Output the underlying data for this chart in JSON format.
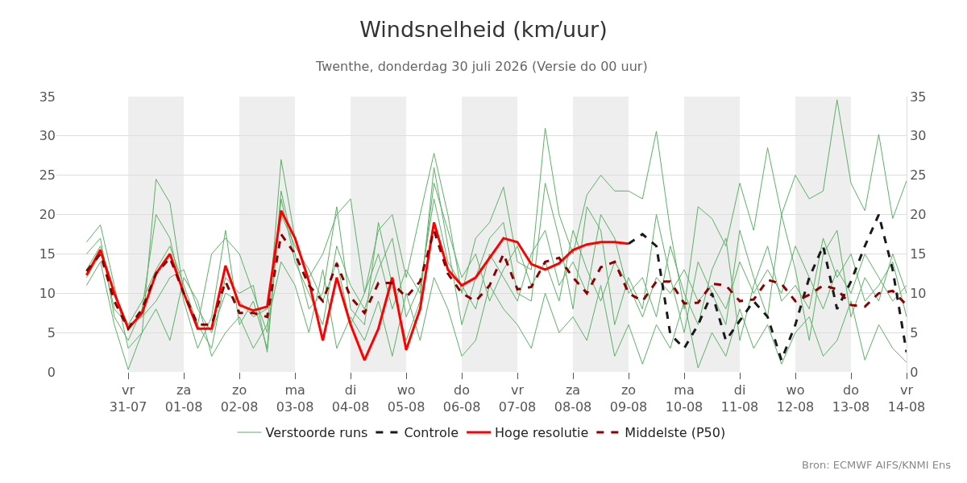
{
  "chart_data": {
    "type": "line",
    "title": "Windsnelheid (km/uur)",
    "subtitle": "Twenthe, donderdag 30 juli 2026 (Versie do 00 uur)",
    "annotations": [
      "Bron: ECMWF AIFS/KNMI Ens"
    ],
    "x": [
      "2026-07-30T06:00",
      "2026-07-30T12:00",
      "2026-07-30T18:00",
      "2026-07-31T00:00",
      "2026-07-31T06:00",
      "2026-07-31T12:00",
      "2026-07-31T18:00",
      "2026-08-01T00:00",
      "2026-08-01T06:00",
      "2026-08-01T12:00",
      "2026-08-01T18:00",
      "2026-08-02T00:00",
      "2026-08-02T06:00",
      "2026-08-02T12:00",
      "2026-08-02T18:00",
      "2026-08-03T00:00",
      "2026-08-03T06:00",
      "2026-08-03T12:00",
      "2026-08-03T18:00",
      "2026-08-04T00:00",
      "2026-08-04T06:00",
      "2026-08-04T12:00",
      "2026-08-04T18:00",
      "2026-08-05T00:00",
      "2026-08-05T06:00",
      "2026-08-05T12:00",
      "2026-08-05T18:00",
      "2026-08-06T00:00",
      "2026-08-06T06:00",
      "2026-08-06T12:00",
      "2026-08-06T18:00",
      "2026-08-07T00:00",
      "2026-08-07T06:00",
      "2026-08-07T12:00",
      "2026-08-07T18:00",
      "2026-08-08T00:00",
      "2026-08-08T06:00",
      "2026-08-08T12:00",
      "2026-08-08T18:00",
      "2026-08-09T00:00",
      "2026-08-09T06:00",
      "2026-08-09T12:00",
      "2026-08-09T18:00",
      "2026-08-10T00:00",
      "2026-08-10T06:00",
      "2026-08-10T12:00",
      "2026-08-10T18:00",
      "2026-08-11T00:00",
      "2026-08-11T06:00",
      "2026-08-11T12:00",
      "2026-08-11T18:00",
      "2026-08-12T00:00",
      "2026-08-12T06:00",
      "2026-08-12T12:00",
      "2026-08-12T18:00",
      "2026-08-13T00:00",
      "2026-08-13T06:00",
      "2026-08-13T12:00",
      "2026-08-13T18:00",
      "2026-08-14T00:00"
    ],
    "xlim": [
      "2026-07-29T17:00",
      "2026-08-14T00:00"
    ],
    "xticks": [
      {
        "value": "2026-07-31",
        "label": "vr\n31-07"
      },
      {
        "value": "2026-08-01",
        "label": "za\n01-08"
      },
      {
        "value": "2026-08-02",
        "label": "zo\n02-08"
      },
      {
        "value": "2026-08-03",
        "label": "ma\n03-08"
      },
      {
        "value": "2026-08-04",
        "label": "di\n04-08"
      },
      {
        "value": "2026-08-05",
        "label": "wo\n05-08"
      },
      {
        "value": "2026-08-06",
        "label": "do\n06-08"
      },
      {
        "value": "2026-08-07",
        "label": "vr\n07-08"
      },
      {
        "value": "2026-08-08",
        "label": "za\n08-08"
      },
      {
        "value": "2026-08-09",
        "label": "zo\n09-08"
      },
      {
        "value": "2026-08-10",
        "label": "ma\n10-08"
      },
      {
        "value": "2026-08-11",
        "label": "di\n11-08"
      },
      {
        "value": "2026-08-12",
        "label": "wo\n12-08"
      },
      {
        "value": "2026-08-13",
        "label": "do\n13-08"
      },
      {
        "value": "2026-08-14",
        "label": "vr\n14-08"
      }
    ],
    "ylim": [
      0,
      35
    ],
    "yticks": [
      0,
      5,
      10,
      15,
      20,
      25,
      30,
      35
    ],
    "y2lim": [
      0,
      35
    ],
    "y2ticks": [
      0,
      5,
      10,
      15,
      20,
      25,
      30,
      35
    ],
    "grid": "y",
    "legend": "bottom",
    "marker": "none",
    "bands": [
      {
        "axis": "x",
        "from": "2026-07-31",
        "to": "2026-08-01",
        "color": "#eeeeee"
      },
      {
        "axis": "x",
        "from": "2026-08-02",
        "to": "2026-08-03",
        "color": "#eeeeee"
      },
      {
        "axis": "x",
        "from": "2026-08-04",
        "to": "2026-08-05",
        "color": "#eeeeee"
      },
      {
        "axis": "x",
        "from": "2026-08-06",
        "to": "2026-08-07",
        "color": "#eeeeee"
      },
      {
        "axis": "x",
        "from": "2026-08-08",
        "to": "2026-08-09",
        "color": "#eeeeee"
      },
      {
        "axis": "x",
        "from": "2026-08-10",
        "to": "2026-08-11",
        "color": "#eeeeee"
      },
      {
        "axis": "x",
        "from": "2026-08-12",
        "to": "2026-08-13",
        "color": "#eeeeee"
      }
    ],
    "series": [
      {
        "name": "Verstoorde runs",
        "color": "#5cb166",
        "line_style": "solid",
        "values": [
          16.5,
          18.7,
          11,
          3,
          5,
          24.5,
          21.5,
          10,
          6,
          15,
          17,
          15,
          10,
          5,
          27,
          17,
          12,
          15,
          20,
          22,
          10,
          18,
          20,
          12,
          20,
          27.8,
          20,
          10,
          17,
          19,
          23.5,
          14,
          13,
          31,
          20,
          15,
          22.5,
          25,
          23,
          23,
          22,
          30.6,
          18,
          8,
          21,
          19.5,
          16,
          24,
          18,
          28.5,
          20,
          25,
          22,
          23,
          34.6,
          24,
          20.5,
          30.2,
          19.5,
          24.3
        ]
      },
      {
        "color": "#5cb166",
        "line_style": "solid",
        "values": [
          11,
          14,
          6,
          0.3,
          5,
          8,
          4,
          12,
          9,
          2,
          5,
          7,
          3,
          6,
          14,
          11,
          5,
          13,
          3,
          7,
          4,
          9,
          2,
          10,
          4,
          12,
          8,
          2,
          4,
          11,
          8,
          6,
          3,
          10,
          5,
          7,
          4,
          11,
          2,
          6,
          1,
          6,
          3,
          9,
          0.5,
          5,
          2,
          8,
          3,
          6,
          1,
          5,
          7,
          2,
          4,
          9,
          1.5,
          6,
          3,
          1.2
        ]
      },
      {
        "color": "#5cb166",
        "line_style": "solid",
        "values": [
          15,
          17,
          7,
          4,
          8,
          20,
          17,
          9,
          3,
          7,
          18,
          6,
          9,
          3,
          23,
          15,
          8,
          10,
          21,
          8,
          6,
          19,
          11,
          4,
          9,
          26,
          16,
          6,
          12,
          17,
          19,
          10,
          9,
          24,
          17,
          8,
          21,
          18,
          6,
          12,
          8,
          20,
          12,
          5,
          14,
          10,
          6,
          18,
          12,
          7,
          20,
          13,
          4,
          15,
          18,
          7,
          12,
          9,
          15,
          10
        ]
      },
      {
        "color": "#5cb166",
        "line_style": "solid",
        "values": [
          13,
          16,
          8,
          6,
          9,
          13,
          16,
          11,
          6,
          3,
          12,
          10,
          11,
          2.5,
          22,
          14,
          10,
          6,
          16,
          11,
          8,
          13,
          17,
          7,
          11,
          22,
          14,
          11,
          8,
          15,
          12,
          9,
          15,
          18,
          11,
          14,
          10,
          20,
          17,
          10,
          12,
          7,
          16,
          10,
          6,
          13,
          17,
          4,
          11,
          16,
          9,
          11,
          8,
          17,
          12,
          15,
          9,
          11,
          14,
          7
        ]
      },
      {
        "color": "#5cb166",
        "line_style": "solid",
        "values": [
          12,
          15,
          10,
          6,
          7,
          9,
          12,
          13,
          8,
          5,
          10,
          9,
          7,
          8,
          20,
          16,
          13,
          9,
          14,
          6,
          10,
          15,
          8,
          13,
          10,
          24,
          18,
          12,
          15,
          9,
          13,
          16,
          11,
          14,
          9,
          18,
          13,
          9,
          14,
          11,
          7,
          12,
          10,
          13,
          9,
          11,
          8,
          14,
          10,
          13,
          10,
          16,
          12,
          8,
          13,
          10,
          15,
          12,
          9,
          11
        ]
      },
      {
        "name": "Controle",
        "color": "#1a1a1a",
        "line_style": "dashed",
        "values": [
          null,
          null,
          null,
          null,
          null,
          null,
          null,
          null,
          null,
          null,
          null,
          null,
          null,
          null,
          null,
          null,
          null,
          null,
          null,
          null,
          null,
          null,
          null,
          null,
          null,
          null,
          null,
          null,
          null,
          null,
          null,
          null,
          null,
          null,
          null,
          null,
          null,
          null,
          null,
          16.3,
          17.5,
          16,
          4.8,
          3,
          6,
          10,
          4,
          6.5,
          9,
          7,
          1.5,
          6,
          12,
          16,
          8,
          11.5,
          16,
          20,
          13,
          2.5
        ]
      },
      {
        "name": "Hoge resolutie",
        "color": "#ff0000",
        "line_style": "solid",
        "values": [
          12.3,
          15.5,
          10,
          5.5,
          7.5,
          12.5,
          15,
          10,
          5.5,
          5.5,
          13.5,
          8.5,
          7.8,
          8.3,
          20.5,
          17,
          11.5,
          4,
          12,
          6,
          1.5,
          5.5,
          12,
          2.8,
          8,
          19,
          13,
          11,
          12,
          14.5,
          17,
          16.5,
          13.7,
          13,
          13.8,
          15.5,
          16.2,
          16.5,
          16.5,
          16.3,
          null,
          null,
          null,
          null,
          null,
          null,
          null,
          null,
          null,
          null,
          null,
          null,
          null,
          null,
          null,
          null,
          null,
          null,
          null,
          null
        ]
      },
      {
        "name": "Middelste (P50)",
        "color": "#8b0000",
        "line_style": "dashed",
        "values": [
          12.8,
          15,
          9,
          5.5,
          8,
          12.5,
          14.5,
          10,
          6,
          6,
          11.5,
          7.5,
          7.5,
          7,
          17.5,
          15,
          11,
          9,
          13.8,
          9.5,
          7.5,
          11.3,
          11.3,
          9.5,
          11.5,
          18,
          12.5,
          10,
          9,
          11,
          15,
          10.5,
          10.8,
          14,
          14.5,
          12,
          10,
          13.3,
          14,
          10,
          9,
          11.5,
          11.5,
          8.7,
          8.8,
          11.2,
          11,
          9,
          9.2,
          11.7,
          11.2,
          9,
          9.8,
          11,
          10.5,
          8.5,
          8.3,
          10,
          10.3,
          8.5
        ]
      }
    ]
  }
}
